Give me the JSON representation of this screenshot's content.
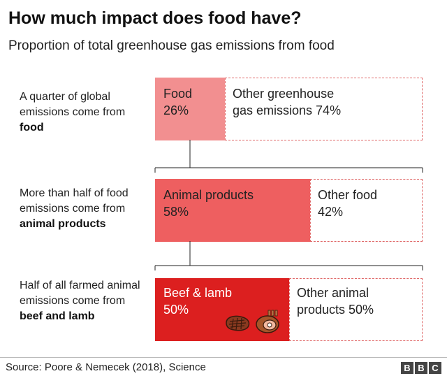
{
  "title": "How much impact does food have?",
  "subtitle": "Proportion of total greenhouse gas emissions from food",
  "rows": [
    {
      "desc_plain": "A quarter of global emissions come from ",
      "desc_bold": "food",
      "main_label": "Food\n26%",
      "other_label": "Other greenhouse\ngas emissions 74%"
    },
    {
      "desc_plain": "More than half of food emissions come from ",
      "desc_bold": "animal products",
      "main_label": "Animal products\n58%",
      "other_label": "Other food\n42%"
    },
    {
      "desc_plain": "Half of all farmed animal emissions come from ",
      "desc_bold": "beef and lamb",
      "main_label": "Beef & lamb\n50%",
      "other_label": "Other animal\nproducts 50%"
    }
  ],
  "icons": [
    "steak-icon",
    "ham-icon"
  ],
  "colors": {
    "food": "#f28f90",
    "animal": "#ee5f60",
    "beef": "#dc1f1f",
    "dashed": "#e06a6a"
  },
  "source": "Source: Poore & Nemecek (2018), Science",
  "logo": [
    "B",
    "B",
    "C"
  ],
  "chart_data": {
    "type": "bar",
    "title": "How much impact does food have?",
    "subtitle": "Proportion of total greenhouse gas emissions from food",
    "categories": [
      "Food",
      "Animal products",
      "Beef & lamb"
    ],
    "series": [
      {
        "name": "",
        "values": [
          26,
          58,
          50
        ]
      },
      {
        "name": "",
        "values": [
          74,
          42,
          50
        ]
      }
    ],
    "segment_labels": [
      [
        "Food 26%",
        "Other greenhouse gas emissions 74%"
      ],
      [
        "Animal products 58%",
        "Other food 42%"
      ],
      [
        "Beef & lamb 50%",
        "Other animal products 50%"
      ]
    ],
    "orientation": "horizontal",
    "stacked": true,
    "xlim": [
      0,
      100
    ],
    "grid": false
  }
}
